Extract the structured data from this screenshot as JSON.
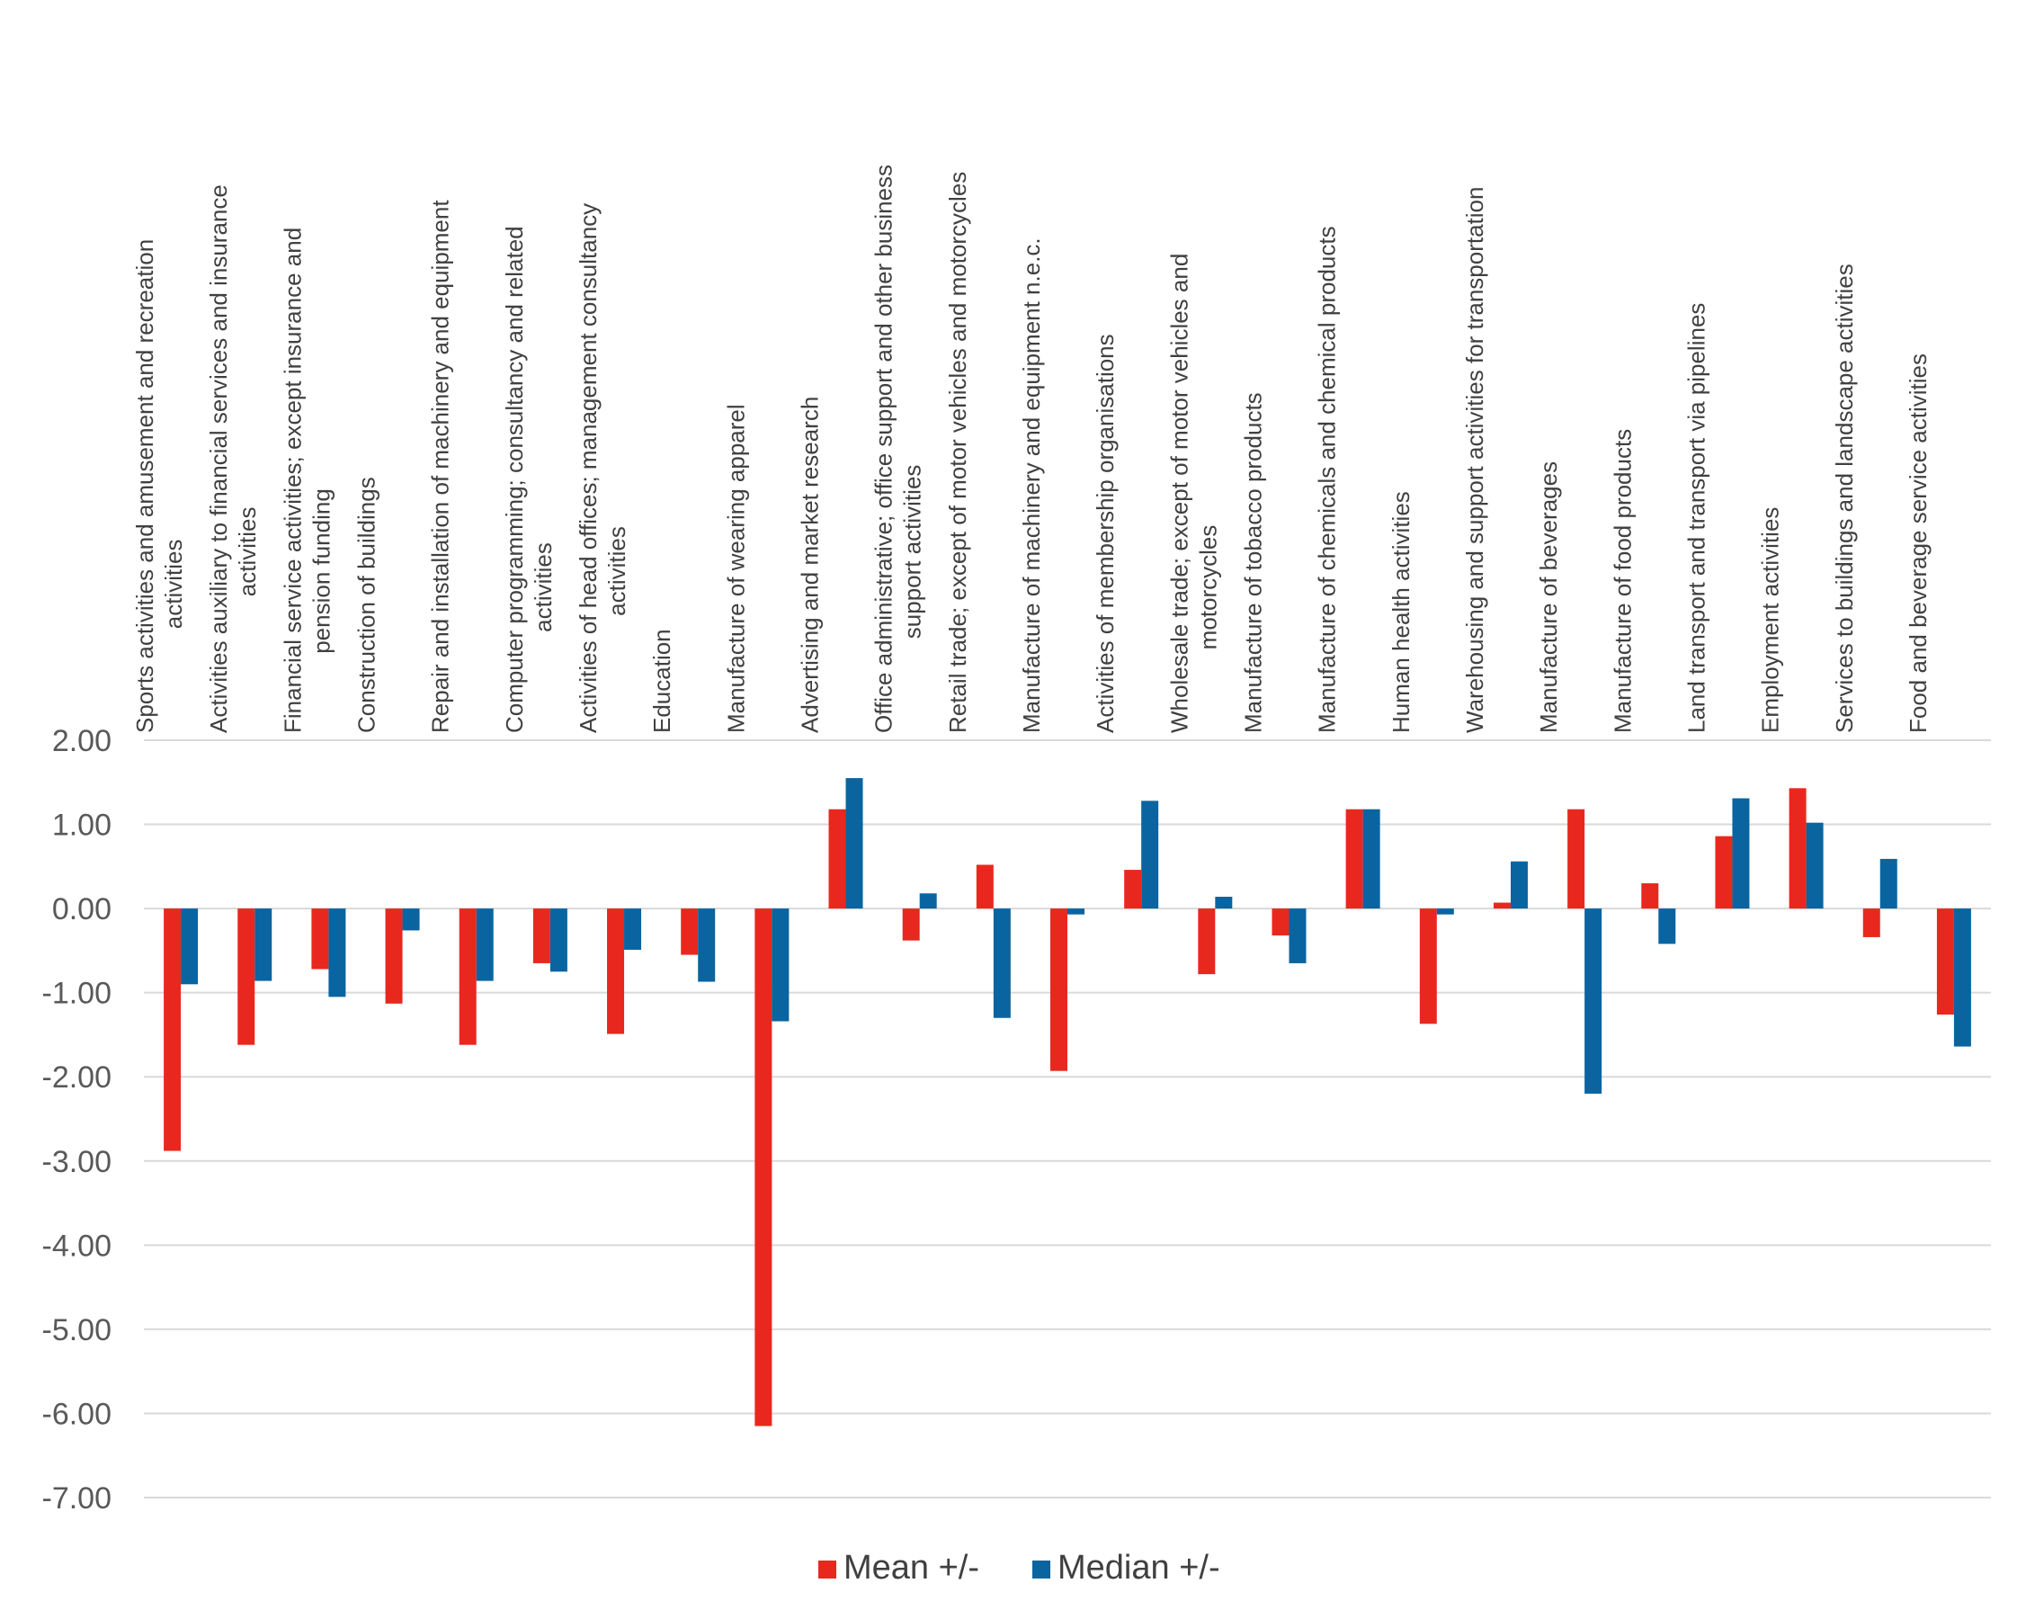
{
  "chart_data": {
    "type": "bar",
    "title": "",
    "xlabel": "",
    "ylabel": "",
    "ylim": [
      -7,
      2
    ],
    "yticks": [
      "2.00",
      "1.00",
      "0.00",
      "-1.00",
      "-2.00",
      "-3.00",
      "-4.00",
      "-5.00",
      "-6.00",
      "-7.00"
    ],
    "grid": true,
    "legend_position": "bottom",
    "categories": [
      [
        "Sports activities and amusement and recreation",
        "activities"
      ],
      [
        "Activities auxiliary to financial services and insurance",
        "activities"
      ],
      [
        "Financial service activities; except insurance and",
        "pension funding"
      ],
      [
        "Construction of buildings"
      ],
      [
        "Repair and installation of machinery and equipment"
      ],
      [
        "Computer programming; consultancy and related",
        "activities"
      ],
      [
        "Activities of head offices; management consultancy",
        "activities"
      ],
      [
        "Education"
      ],
      [
        "Manufacture of wearing apparel"
      ],
      [
        "Advertising and market research"
      ],
      [
        "Office administrative; office support and other business",
        "support activities"
      ],
      [
        "Retail trade; except of motor vehicles and motorcycles"
      ],
      [
        "Manufacture of machinery and equipment n.e.c."
      ],
      [
        "Activities of membership organisations"
      ],
      [
        "Wholesale trade; except of motor vehicles and",
        "motorcycles"
      ],
      [
        "Manufacture of tobacco products"
      ],
      [
        "Manufacture of chemicals and chemical products"
      ],
      [
        "Human health activities"
      ],
      [
        "Warehousing and support activities for transportation"
      ],
      [
        "Manufacture of beverages"
      ],
      [
        "Manufacture of food products"
      ],
      [
        "Land transport and transport via pipelines"
      ],
      [
        "Employment activities"
      ],
      [
        "Services to buildings and landscape activities"
      ],
      [
        "Food and beverage service activities"
      ]
    ],
    "series": [
      {
        "name": "Mean +/-",
        "color": "#E8281E",
        "values": [
          -2.88,
          -1.62,
          -0.72,
          -1.13,
          -1.62,
          -0.65,
          -1.49,
          -0.55,
          -6.15,
          1.18,
          -0.38,
          0.52,
          -1.93,
          0.46,
          -0.78,
          -0.32,
          1.18,
          -1.37,
          0.07,
          1.18,
          0.3,
          0.86,
          1.43,
          -0.34,
          -1.26
        ]
      },
      {
        "name": "Median +/-",
        "color": "#0A64A0",
        "values": [
          -0.9,
          -0.86,
          -1.05,
          -0.26,
          -0.86,
          -0.75,
          -0.49,
          -0.87,
          -1.34,
          1.55,
          0.18,
          -1.3,
          -0.07,
          1.28,
          0.14,
          -0.65,
          1.18,
          -0.07,
          0.56,
          -2.2,
          -0.42,
          1.31,
          1.02,
          0.59,
          -1.64
        ]
      }
    ]
  }
}
